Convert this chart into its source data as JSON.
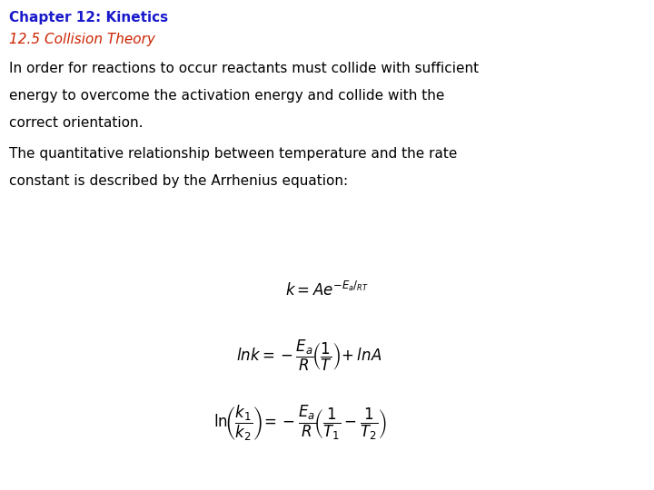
{
  "title": "Chapter 12: Kinetics",
  "subtitle": "12.5 Collision Theory",
  "title_color": "#1a1acc",
  "subtitle_color": "#cc2200",
  "body_color": "#000000",
  "background_color": "#ffffff",
  "paragraph1_line1": "In order for reactions to occur reactants must collide with sufficient",
  "paragraph1_line2": "energy to overcome the activation energy and collide with the",
  "paragraph1_line3": "correct orientation.",
  "paragraph2_line1": "The quantitative relationship between temperature and the rate",
  "paragraph2_line2": "constant is described by the Arrhenius equation:",
  "title_fontsize": 11,
  "subtitle_fontsize": 11,
  "body_fontsize": 11,
  "eq_fontsize": 12
}
